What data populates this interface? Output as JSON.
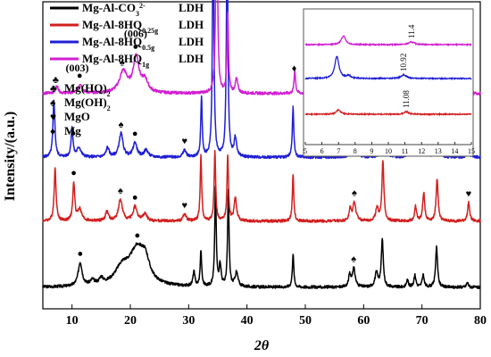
{
  "chart_data": [
    {
      "type": "line",
      "title": "",
      "xlabel": "2θ",
      "ylabel": "Intensity/(a.u.)",
      "xlim": [
        5,
        80
      ],
      "x_ticks": [
        "10",
        "20",
        "30",
        "40",
        "50",
        "60",
        "70",
        "80"
      ],
      "grid": false,
      "legend": {
        "position": "top-left"
      },
      "series": [
        {
          "name": "Mg-Al-CO₃²⁻",
          "name_parts": [
            {
              "t": "Mg-Al-CO"
            },
            {
              "t": "3",
              "sub": true
            },
            {
              "t": "2-",
              "sup": true
            }
          ],
          "suffix": "LDH",
          "color": "#000000",
          "baseline": 0.0,
          "peaks": [
            {
              "x": 11.4,
              "h": 0.1,
              "w": 0.4
            },
            {
              "x": 13.5,
              "h": 0.02,
              "w": 0.4
            },
            {
              "x": 15.0,
              "h": 0.025,
              "w": 0.4
            },
            {
              "x": 18.6,
              "h": 0.07,
              "w": 1.5
            },
            {
              "x": 21.2,
              "h": 0.15,
              "w": 1.6
            },
            {
              "x": 22.6,
              "h": 0.07,
              "w": 0.8
            },
            {
              "x": 30.9,
              "h": 0.06,
              "w": 0.2
            },
            {
              "x": 32.1,
              "h": 0.15,
              "w": 0.15
            },
            {
              "x": 34.6,
              "h": 0.42,
              "w": 0.15
            },
            {
              "x": 35.4,
              "h": 0.09,
              "w": 0.2
            },
            {
              "x": 36.8,
              "h": 0.4,
              "w": 0.15
            },
            {
              "x": 38.2,
              "h": 0.06,
              "w": 0.3
            },
            {
              "x": 47.9,
              "h": 0.14,
              "w": 0.15
            },
            {
              "x": 57.6,
              "h": 0.05,
              "w": 0.2
            },
            {
              "x": 58.3,
              "h": 0.08,
              "w": 0.3
            },
            {
              "x": 62.2,
              "h": 0.06,
              "w": 0.3
            },
            {
              "x": 63.2,
              "h": 0.2,
              "w": 0.2
            },
            {
              "x": 67.5,
              "h": 0.03,
              "w": 0.2
            },
            {
              "x": 68.8,
              "h": 0.05,
              "w": 0.2
            },
            {
              "x": 70.2,
              "h": 0.05,
              "w": 0.2
            },
            {
              "x": 72.5,
              "h": 0.17,
              "w": 0.2
            },
            {
              "x": 77.8,
              "h": 0.02,
              "w": 0.2
            }
          ]
        },
        {
          "name": "Mg-Al-8HQ0.25g",
          "name_parts": [
            {
              "t": "Mg-Al-8HQ"
            },
            {
              "t": "0.25g",
              "sub": true
            }
          ],
          "suffix": "LDH",
          "color": "#d21f1f",
          "baseline": 0.28,
          "peaks": [
            {
              "x": 7.1,
              "h": 0.22,
              "w": 0.2
            },
            {
              "x": 10.3,
              "h": 0.16,
              "w": 0.2
            },
            {
              "x": 11.3,
              "h": 0.05,
              "w": 0.4
            },
            {
              "x": 16.0,
              "h": 0.04,
              "w": 0.3
            },
            {
              "x": 18.3,
              "h": 0.09,
              "w": 0.4
            },
            {
              "x": 20.8,
              "h": 0.06,
              "w": 0.4
            },
            {
              "x": 22.5,
              "h": 0.03,
              "w": 0.4
            },
            {
              "x": 29.3,
              "h": 0.03,
              "w": 0.3
            },
            {
              "x": 32.1,
              "h": 0.28,
              "w": 0.15
            },
            {
              "x": 34.5,
              "h": 0.3,
              "w": 0.15
            },
            {
              "x": 36.7,
              "h": 0.28,
              "w": 0.15
            },
            {
              "x": 38.0,
              "h": 0.1,
              "w": 0.25
            },
            {
              "x": 47.9,
              "h": 0.2,
              "w": 0.15
            },
            {
              "x": 57.7,
              "h": 0.05,
              "w": 0.2
            },
            {
              "x": 58.4,
              "h": 0.08,
              "w": 0.3
            },
            {
              "x": 62.3,
              "h": 0.05,
              "w": 0.3
            },
            {
              "x": 63.3,
              "h": 0.25,
              "w": 0.2
            },
            {
              "x": 68.9,
              "h": 0.06,
              "w": 0.2
            },
            {
              "x": 70.3,
              "h": 0.12,
              "w": 0.2
            },
            {
              "x": 72.6,
              "h": 0.18,
              "w": 0.2
            },
            {
              "x": 78.0,
              "h": 0.08,
              "w": 0.2
            }
          ]
        },
        {
          "name": "Mg-Al-8HQ0.5g",
          "name_parts": [
            {
              "t": "Mg-Al-8HQ"
            },
            {
              "t": "0.5g",
              "sub": true
            }
          ],
          "suffix": "LDH",
          "color": "#1f1fd6",
          "baseline": 0.55,
          "peaks": [
            {
              "x": 6.9,
              "h": 0.24,
              "w": 0.2
            },
            {
              "x": 10.0,
              "h": 0.12,
              "w": 0.2
            },
            {
              "x": 11.2,
              "h": 0.04,
              "w": 0.4
            },
            {
              "x": 16.1,
              "h": 0.04,
              "w": 0.3
            },
            {
              "x": 18.4,
              "h": 0.1,
              "w": 0.4
            },
            {
              "x": 20.8,
              "h": 0.06,
              "w": 0.4
            },
            {
              "x": 22.7,
              "h": 0.03,
              "w": 0.4
            },
            {
              "x": 29.3,
              "h": 0.03,
              "w": 0.3
            },
            {
              "x": 32.2,
              "h": 0.25,
              "w": 0.15
            },
            {
              "x": 34.2,
              "h": 1.0,
              "w": 0.15
            },
            {
              "x": 36.6,
              "h": 0.99,
              "w": 0.15
            },
            {
              "x": 38.0,
              "h": 0.08,
              "w": 0.25
            },
            {
              "x": 47.9,
              "h": 0.21,
              "w": 0.15
            },
            {
              "x": 57.8,
              "h": 0.06,
              "w": 0.2
            },
            {
              "x": 58.6,
              "h": 0.06,
              "w": 0.3
            },
            {
              "x": 63.4,
              "h": 0.24,
              "w": 0.2
            },
            {
              "x": 67.6,
              "h": 0.04,
              "w": 0.2
            },
            {
              "x": 68.8,
              "h": 0.06,
              "w": 0.2
            },
            {
              "x": 70.3,
              "h": 0.12,
              "w": 0.2
            },
            {
              "x": 72.6,
              "h": 0.18,
              "w": 0.2
            },
            {
              "x": 77.9,
              "h": 0.04,
              "w": 0.2
            }
          ]
        },
        {
          "name": "Mg-Al-8HQ1g",
          "name_parts": [
            {
              "t": "Mg-Al-8HQ"
            },
            {
              "t": "1g",
              "sub": true
            }
          ],
          "suffix": "LDH",
          "color": "#d21fd2",
          "baseline": 0.82,
          "peaks": [
            {
              "x": 7.4,
              "h": 0.03,
              "w": 0.3
            },
            {
              "x": 11.4,
              "h": 0.04,
              "w": 0.4
            },
            {
              "x": 18.8,
              "h": 0.09,
              "w": 0.8
            },
            {
              "x": 21.0,
              "h": 0.15,
              "w": 0.6
            },
            {
              "x": 22.5,
              "h": 0.05,
              "w": 0.6
            },
            {
              "x": 34.8,
              "h": 1.08,
              "w": 0.15
            },
            {
              "x": 36.7,
              "h": 0.33,
              "w": 0.15
            },
            {
              "x": 38.2,
              "h": 0.06,
              "w": 0.25
            },
            {
              "x": 48.2,
              "h": 0.1,
              "w": 0.15
            },
            {
              "x": 58.4,
              "h": 0.04,
              "w": 0.3
            },
            {
              "x": 63.7,
              "h": 0.19,
              "w": 0.2
            },
            {
              "x": 68.9,
              "h": 0.02,
              "w": 0.2
            },
            {
              "x": 72.9,
              "h": 0.09,
              "w": 0.2
            }
          ]
        }
      ],
      "phase_legend": [
        {
          "symbol": "♣",
          "parts": [
            {
              "t": "Mg(HQ)"
            },
            {
              "t": "2",
              "sub": true
            }
          ]
        },
        {
          "symbol": "♠",
          "parts": [
            {
              "t": "Mg(OH)"
            },
            {
              "t": "2",
              "sub": true
            }
          ]
        },
        {
          "symbol": "♥",
          "parts": [
            {
              "t": "MgO"
            }
          ]
        },
        {
          "symbol": "♦",
          "parts": [
            {
              "t": "Mg"
            }
          ]
        }
      ],
      "annotations": [
        {
          "text": "(003)",
          "x": 10.9
        },
        {
          "text": "(006)",
          "x": 20.9
        }
      ],
      "peak_markers": [
        {
          "symbol": "♣",
          "x": 7.2,
          "series": 3
        },
        {
          "symbol": "●",
          "x": 11.3,
          "series": 3
        },
        {
          "symbol": "♠",
          "x": 18.6,
          "series": 3
        },
        {
          "symbol": "●",
          "x": 20.9,
          "series": 3
        },
        {
          "symbol": "♦",
          "x": 34.6,
          "series": 3
        },
        {
          "symbol": "♦",
          "x": 36.6,
          "series": 2
        },
        {
          "symbol": "♦",
          "x": 48.1,
          "series": 3
        },
        {
          "symbol": "♠",
          "x": 58.4,
          "series": 3
        },
        {
          "symbol": "♦",
          "x": 63.6,
          "series": 3
        },
        {
          "symbol": "●",
          "x": 10.2,
          "series": 2
        },
        {
          "symbol": "♠",
          "x": 18.4,
          "series": 2
        },
        {
          "symbol": "●",
          "x": 20.8,
          "series": 2
        },
        {
          "symbol": "♥",
          "x": 29.3,
          "series": 2
        },
        {
          "symbol": "♠",
          "x": 58.4,
          "series": 2
        },
        {
          "symbol": "♥",
          "x": 77.9,
          "series": 2
        },
        {
          "symbol": "●",
          "x": 10.3,
          "series": 1
        },
        {
          "symbol": "♠",
          "x": 18.3,
          "series": 1
        },
        {
          "symbol": "●",
          "x": 20.8,
          "series": 1
        },
        {
          "symbol": "♥",
          "x": 29.3,
          "series": 1
        },
        {
          "symbol": "♠",
          "x": 58.4,
          "series": 1
        },
        {
          "symbol": "♥",
          "x": 78.0,
          "series": 1
        },
        {
          "symbol": "●",
          "x": 11.4,
          "series": 0
        },
        {
          "symbol": "●",
          "x": 21.2,
          "series": 0
        },
        {
          "symbol": "♠",
          "x": 58.3,
          "series": 0
        }
      ]
    },
    {
      "type": "line",
      "title": "",
      "xlabel": "",
      "ylabel": "",
      "xlim": [
        5,
        15
      ],
      "x_ticks": [
        "5",
        "6",
        "7",
        "8",
        "9",
        "10",
        "11",
        "12",
        "13",
        "14",
        "15"
      ],
      "grid": false,
      "series": [
        {
          "color": "#d21f1f",
          "baseline": 0.0,
          "peaks": [
            {
              "x": 7.0,
              "h": 0.05,
              "w": 0.15
            },
            {
              "x": 11.08,
              "h": 0.03,
              "w": 0.15
            }
          ],
          "peak_label": {
            "text": "11.08",
            "x": 11.08
          }
        },
        {
          "color": "#1f1fd6",
          "baseline": 0.4,
          "peaks": [
            {
              "x": 6.9,
              "h": 0.25,
              "w": 0.15
            },
            {
              "x": 7.6,
              "h": 0.03,
              "w": 0.15
            },
            {
              "x": 10.92,
              "h": 0.04,
              "w": 0.2
            }
          ],
          "peak_label": {
            "text": "10.92",
            "x": 10.92
          }
        },
        {
          "color": "#d21fd2",
          "baseline": 0.78,
          "peaks": [
            {
              "x": 7.3,
              "h": 0.1,
              "w": 0.15
            },
            {
              "x": 11.4,
              "h": 0.03,
              "w": 0.2
            }
          ],
          "peak_label": {
            "text": "11.4",
            "x": 11.4
          }
        }
      ]
    }
  ]
}
